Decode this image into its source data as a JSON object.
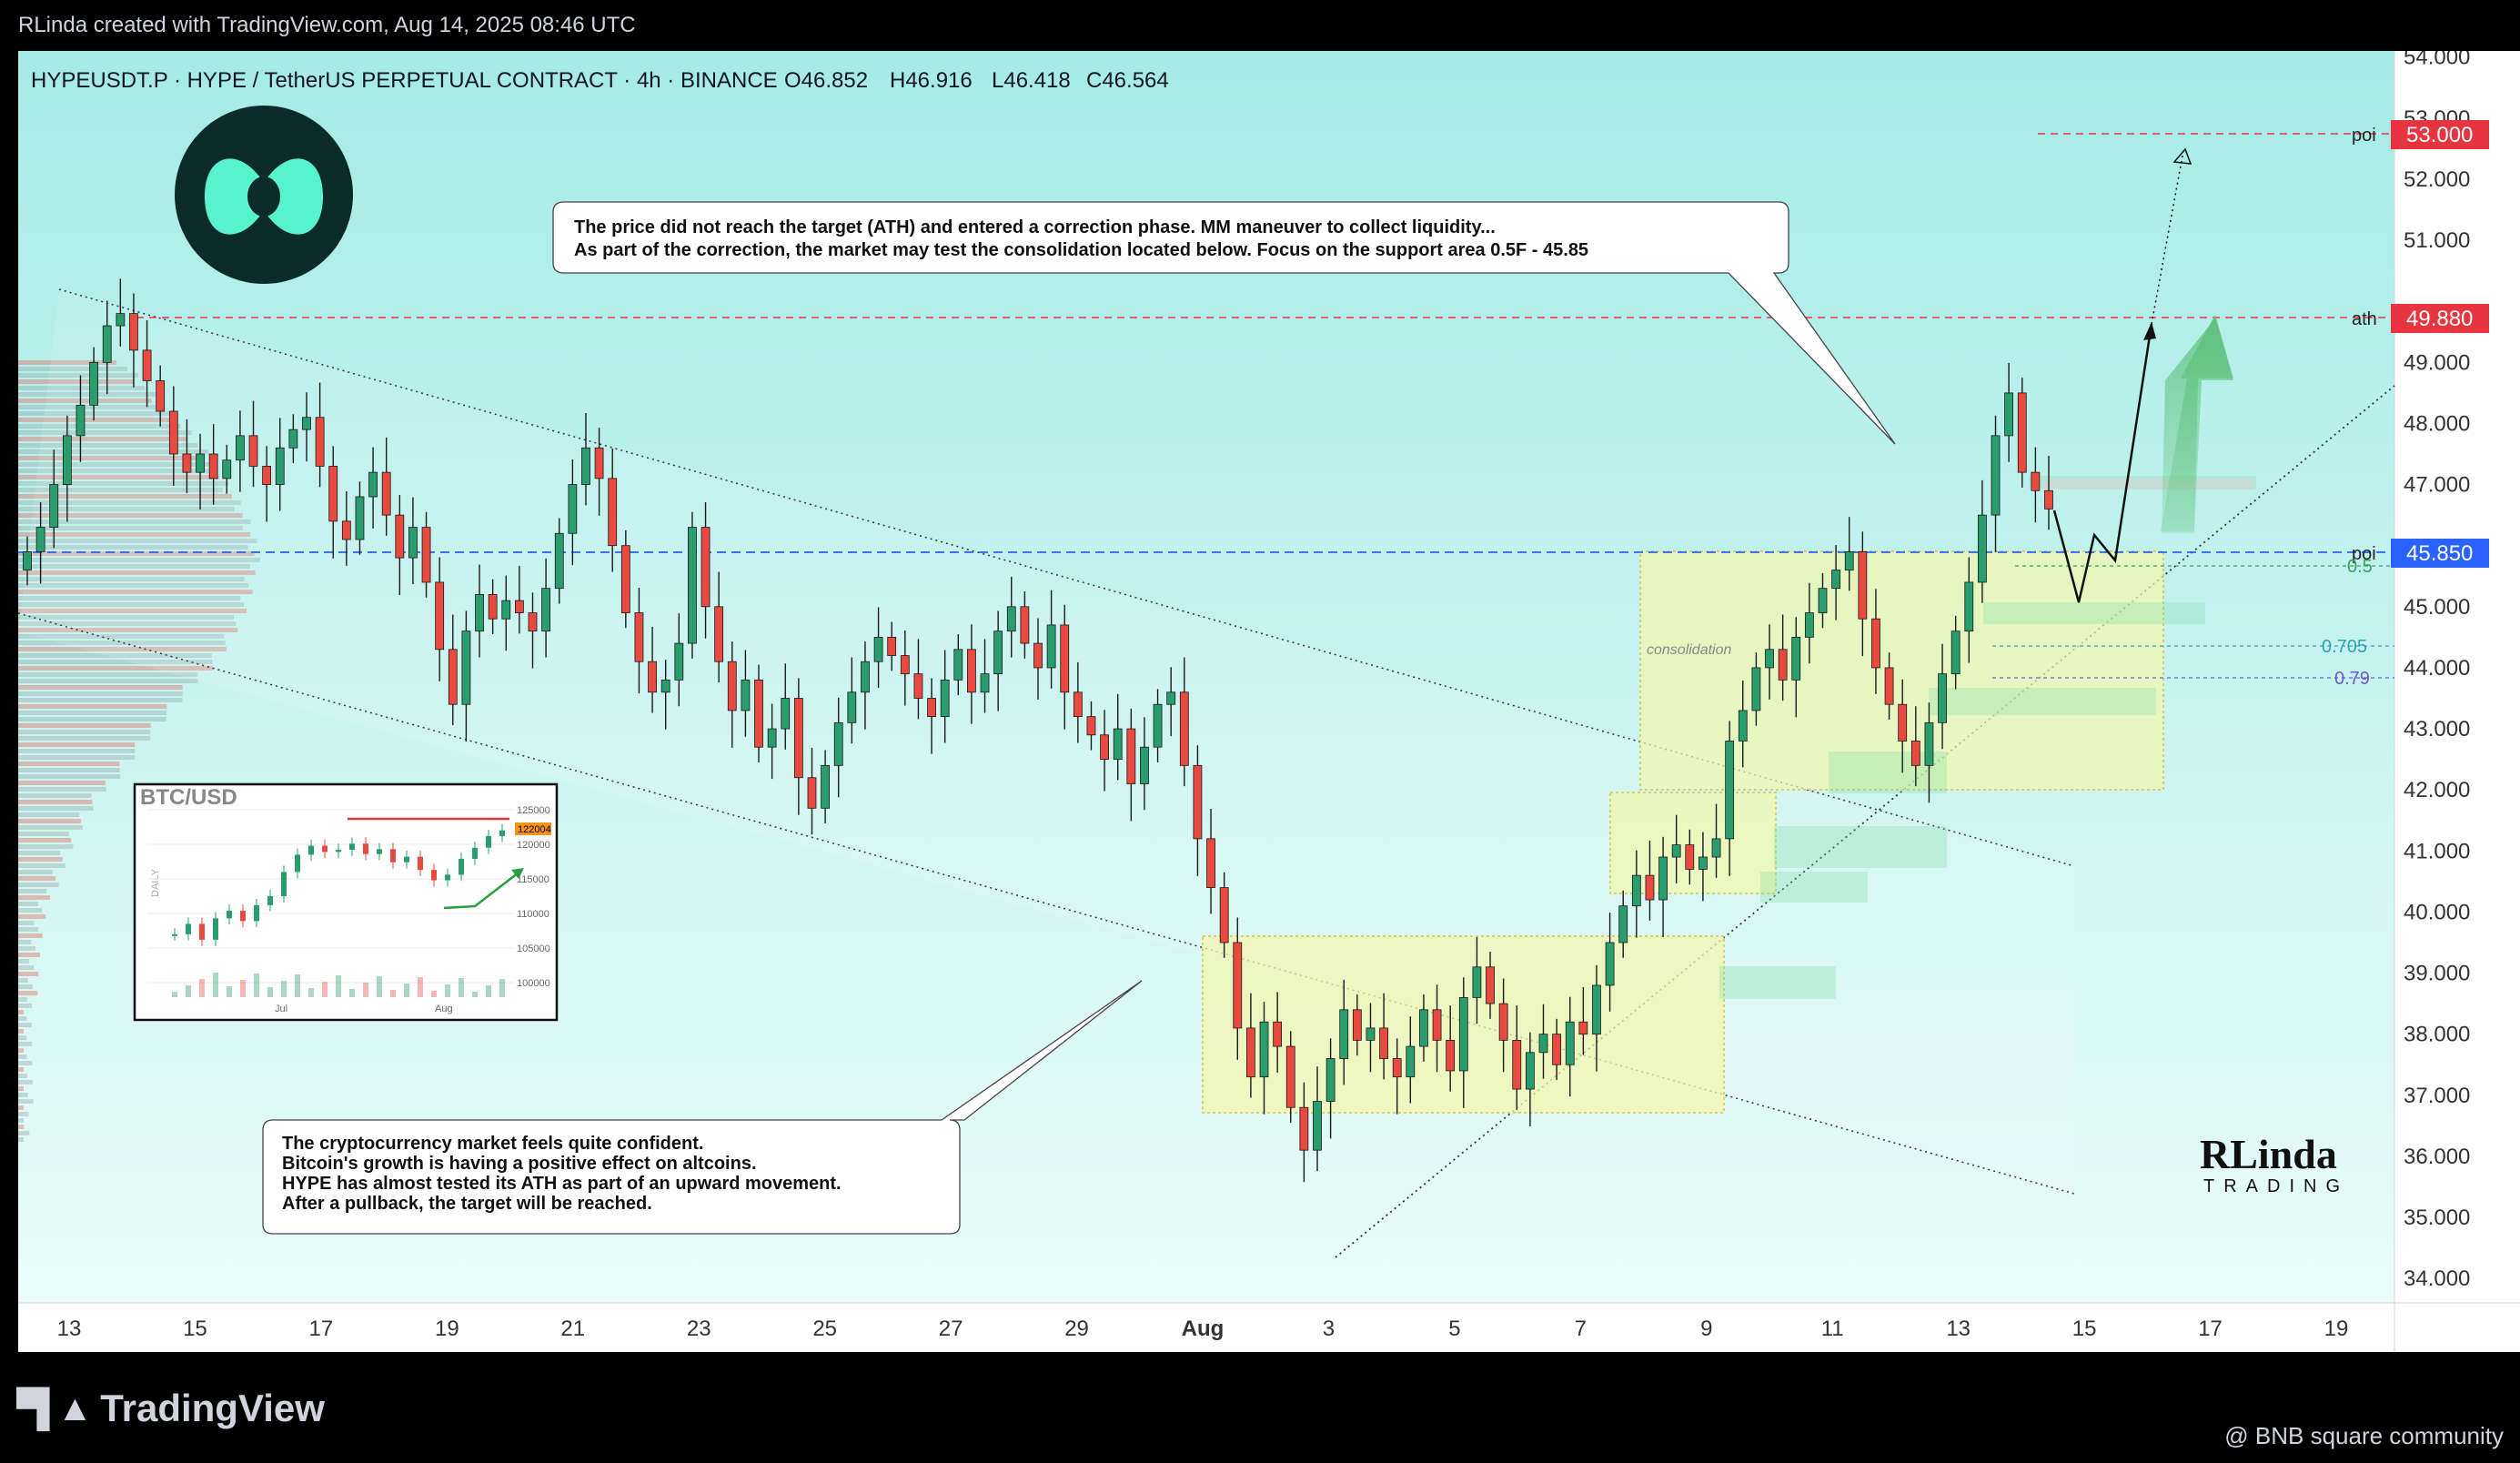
{
  "header": {
    "attribution": "RLinda created with TradingView.com, Aug 14, 2025 08:46 UTC"
  },
  "chart_header": {
    "symbol_line": "HYPEUSDT.P · HYPE / TetherUS PERPETUAL CONTRACT · 4h · BINANCE",
    "ohlc": {
      "o": "O46.852",
      "h": "H46.916",
      "l": "L46.418",
      "c": "C46.564"
    }
  },
  "colors": {
    "up": "#2a9d6e",
    "down": "#e84a3f",
    "bg_top": "#a7ece7",
    "bg_bottom": "#e6fbf8",
    "red_label": "#e8343f",
    "blue_label": "#2962ff",
    "zone_fill": "#f2f5b0"
  },
  "annotations": {
    "top_note": [
      "The price did not reach the target (ATH) and entered a correction phase. MM maneuver to collect liquidity...",
      "As part of the correction, the market may test the consolidation located below. Focus on the support area 0.5F - 45.85"
    ],
    "bottom_note": [
      "The cryptocurrency market feels quite confident.",
      "Bitcoin's growth is having a positive effect on altcoins.",
      "HYPE has almost tested its ATH as part of an upward movement.",
      "After a pullback, the target will be reached."
    ],
    "consolidation_label": "consolidation",
    "fib_labels": [
      "0.5",
      "0.705",
      "0.79"
    ],
    "level_tags": [
      "poi",
      "ath",
      "poi"
    ],
    "inset_title": "BTC/USD",
    "inset_side_label": "DAILY",
    "inset_ticks": [
      "125000",
      "120000",
      "115000",
      "110000",
      "105000",
      "100000"
    ],
    "inset_months": [
      "Jul",
      "Aug"
    ],
    "inset_price_tag": "122004",
    "brand_top": "RLinda",
    "brand_bottom": "TRADING"
  },
  "footer": {
    "platform": "TradingView",
    "community": "@ BNB square community"
  },
  "chart_data": {
    "type": "candlestick",
    "title": "HYPEUSDT.P · HYPE / TetherUS PERPETUAL CONTRACT · 4h · BINANCE",
    "y_axis_ticks": [
      "54.000",
      "53.000",
      "52.000",
      "51.000",
      "49.000",
      "48.000",
      "47.000",
      "45.000",
      "44.000",
      "43.000",
      "42.000",
      "41.000",
      "40.000",
      "39.000",
      "38.000",
      "37.000",
      "36.000",
      "35.000",
      "34.000"
    ],
    "ylim": [
      33.6,
      54.1
    ],
    "x_axis_ticks": [
      "13",
      "15",
      "17",
      "19",
      "21",
      "23",
      "25",
      "27",
      "29",
      "Aug",
      "3",
      "5",
      "7",
      "9",
      "11",
      "13",
      "15",
      "17",
      "19"
    ],
    "price_labels": [
      {
        "value": "53.000",
        "tag": "poi"
      },
      {
        "value": "49.880",
        "tag": "ath"
      },
      {
        "value": "45.850",
        "tag": "poi"
      }
    ],
    "last": {
      "open": 46.852,
      "high": 46.916,
      "low": 46.418,
      "close": 46.564
    },
    "closes": [
      45.9,
      46.3,
      47.0,
      47.8,
      48.3,
      49.0,
      49.6,
      49.8,
      49.2,
      48.7,
      48.2,
      47.5,
      47.2,
      47.5,
      47.1,
      47.4,
      47.8,
      47.3,
      47.0,
      47.6,
      47.9,
      48.1,
      47.3,
      46.4,
      46.1,
      46.8,
      47.2,
      46.5,
      45.8,
      46.3,
      45.4,
      44.3,
      43.4,
      44.6,
      45.2,
      44.8,
      45.1,
      44.9,
      44.6,
      45.3,
      46.2,
      47.0,
      47.6,
      47.1,
      46.0,
      44.9,
      44.1,
      43.6,
      43.8,
      44.4,
      46.3,
      45.0,
      44.1,
      43.3,
      43.8,
      42.7,
      43.0,
      43.5,
      42.2,
      41.7,
      42.4,
      43.1,
      43.6,
      44.1,
      44.5,
      44.2,
      43.9,
      43.5,
      43.2,
      43.8,
      44.3,
      43.6,
      43.9,
      44.6,
      45.0,
      44.4,
      44.0,
      44.7,
      43.6,
      43.2,
      42.9,
      42.5,
      43.0,
      42.1,
      42.7,
      43.4,
      43.6,
      42.4,
      41.2,
      40.4,
      39.5,
      38.1,
      37.3,
      38.2,
      37.8,
      36.8,
      36.1,
      36.9,
      37.6,
      38.4,
      37.9,
      38.1,
      37.6,
      37.3,
      37.8,
      38.4,
      37.9,
      37.4,
      38.6,
      39.1,
      38.5,
      37.9,
      37.1,
      37.7,
      38.0,
      37.5,
      38.2,
      38.0,
      38.8,
      39.5,
      40.1,
      40.6,
      40.2,
      40.9,
      41.1,
      40.7,
      40.9,
      41.2,
      42.8,
      43.3,
      44.0,
      44.3,
      43.8,
      44.5,
      44.9,
      45.3,
      45.6,
      45.9,
      44.8,
      44.0,
      43.4,
      42.8,
      42.4,
      43.1,
      43.9,
      44.6,
      45.4,
      46.5,
      47.8,
      48.5,
      47.2,
      46.9,
      46.6
    ]
  }
}
